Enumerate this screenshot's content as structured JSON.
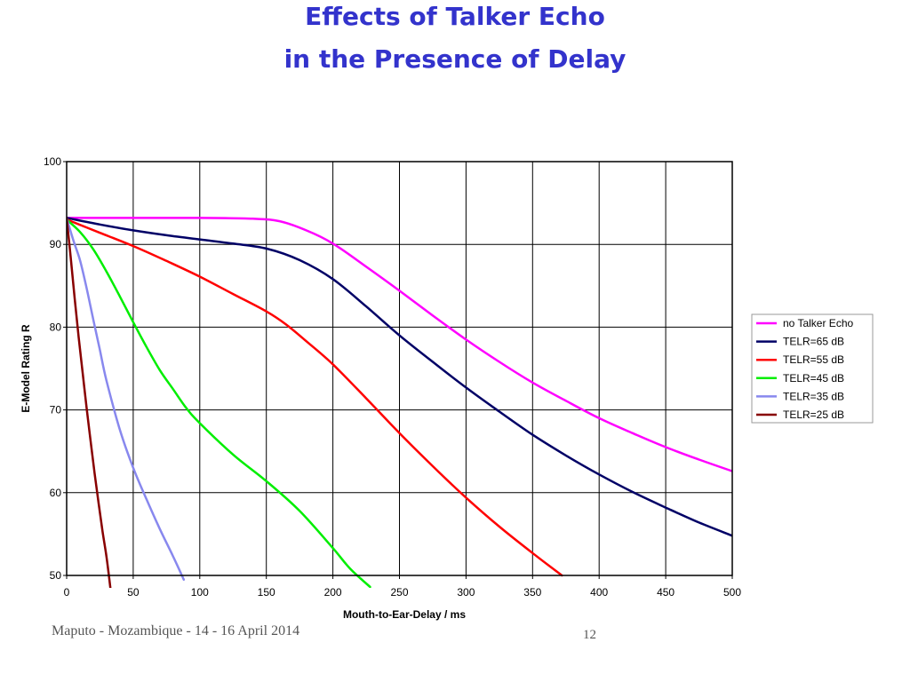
{
  "slide": {
    "title_line1": "Effects of Talker Echo",
    "title_line2": "in the Presence of Delay",
    "footer": "Maputo - Mozambique - 14 - 16 April 2014",
    "page_number": "12"
  },
  "colors": {
    "title": "#3333cc",
    "footer": "#555555"
  },
  "chart_data": {
    "type": "line",
    "title": "",
    "xlabel": "Mouth-to-Ear-Delay / ms",
    "ylabel": "E-Model Rating R",
    "xlim": [
      0,
      500
    ],
    "ylim": [
      50,
      100
    ],
    "xticks": [
      0,
      50,
      100,
      150,
      200,
      250,
      300,
      350,
      400,
      450,
      500
    ],
    "yticks": [
      50,
      60,
      70,
      80,
      90,
      100
    ],
    "grid": true,
    "legend_position": "right",
    "series": [
      {
        "name": "no Talker Echo",
        "color": "#ff00ff",
        "points": [
          [
            0,
            93.2
          ],
          [
            50,
            93.2
          ],
          [
            100,
            93.2
          ],
          [
            140,
            93.1
          ],
          [
            160,
            92.8
          ],
          [
            180,
            91.7
          ],
          [
            200,
            90.1
          ],
          [
            225,
            87.3
          ],
          [
            250,
            84.4
          ],
          [
            275,
            81.4
          ],
          [
            300,
            78.5
          ],
          [
            325,
            75.8
          ],
          [
            350,
            73.3
          ],
          [
            375,
            71.1
          ],
          [
            400,
            69.0
          ],
          [
            425,
            67.2
          ],
          [
            450,
            65.5
          ],
          [
            475,
            64.0
          ],
          [
            500,
            62.6
          ]
        ]
      },
      {
        "name": "TELR=65 dB",
        "color": "#000066",
        "points": [
          [
            0,
            93.2
          ],
          [
            25,
            92.4
          ],
          [
            50,
            91.7
          ],
          [
            75,
            91.1
          ],
          [
            100,
            90.6
          ],
          [
            125,
            90.1
          ],
          [
            150,
            89.5
          ],
          [
            175,
            88.1
          ],
          [
            200,
            85.8
          ],
          [
            225,
            82.5
          ],
          [
            250,
            79.0
          ],
          [
            275,
            75.8
          ],
          [
            300,
            72.7
          ],
          [
            325,
            69.8
          ],
          [
            350,
            67.0
          ],
          [
            375,
            64.5
          ],
          [
            400,
            62.2
          ],
          [
            425,
            60.1
          ],
          [
            450,
            58.2
          ],
          [
            475,
            56.4
          ],
          [
            500,
            54.8
          ]
        ]
      },
      {
        "name": "TELR=55 dB",
        "color": "#ff0000",
        "points": [
          [
            0,
            93.0
          ],
          [
            25,
            91.4
          ],
          [
            50,
            89.8
          ],
          [
            75,
            88.0
          ],
          [
            100,
            86.1
          ],
          [
            125,
            84.0
          ],
          [
            150,
            81.9
          ],
          [
            165,
            80.3
          ],
          [
            180,
            78.3
          ],
          [
            200,
            75.5
          ],
          [
            225,
            71.4
          ],
          [
            250,
            67.2
          ],
          [
            275,
            63.2
          ],
          [
            300,
            59.4
          ],
          [
            325,
            55.9
          ],
          [
            350,
            52.7
          ],
          [
            372,
            50.0
          ]
        ]
      },
      {
        "name": "TELR=45 dB",
        "color": "#00ee00",
        "points": [
          [
            0,
            93.0
          ],
          [
            10,
            91.5
          ],
          [
            20,
            89.4
          ],
          [
            30,
            86.7
          ],
          [
            40,
            83.7
          ],
          [
            50,
            80.6
          ],
          [
            60,
            77.6
          ],
          [
            70,
            74.8
          ],
          [
            80,
            72.5
          ],
          [
            90,
            70.2
          ],
          [
            100,
            68.4
          ],
          [
            125,
            64.6
          ],
          [
            150,
            61.4
          ],
          [
            175,
            57.8
          ],
          [
            200,
            53.3
          ],
          [
            213,
            50.8
          ],
          [
            228,
            48.6
          ]
        ]
      },
      {
        "name": "TELR=35 dB",
        "color": "#8888ee",
        "points": [
          [
            0,
            93.2
          ],
          [
            5,
            90.5
          ],
          [
            10,
            88.1
          ],
          [
            15,
            84.7
          ],
          [
            20,
            80.9
          ],
          [
            25,
            77.2
          ],
          [
            30,
            73.5
          ],
          [
            40,
            67.6
          ],
          [
            50,
            63.0
          ],
          [
            60,
            59.2
          ],
          [
            70,
            55.6
          ],
          [
            80,
            52.3
          ],
          [
            88,
            49.5
          ]
        ]
      },
      {
        "name": "TELR=25 dB",
        "color": "#880000",
        "points": [
          [
            0,
            93.2
          ],
          [
            3,
            88.5
          ],
          [
            6,
            83.5
          ],
          [
            9,
            78.8
          ],
          [
            12,
            74.5
          ],
          [
            15,
            70.2
          ],
          [
            18,
            66.2
          ],
          [
            21,
            62.3
          ],
          [
            24,
            58.7
          ],
          [
            27,
            55.3
          ],
          [
            30,
            52.2
          ],
          [
            33,
            48.3
          ]
        ]
      }
    ]
  }
}
